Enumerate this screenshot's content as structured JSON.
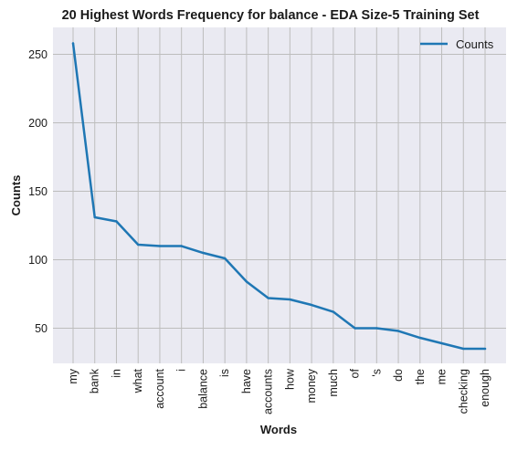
{
  "chart_data": {
    "type": "line",
    "title": "20 Highest Words Frequency for balance - EDA Size-5 Training Set",
    "xlabel": "Words",
    "ylabel": "Counts",
    "categories": [
      "my",
      "bank",
      "in",
      "what",
      "account",
      "i",
      "balance",
      "is",
      "have",
      "accounts",
      "how",
      "money",
      "much",
      "of",
      "'s",
      "do",
      "the",
      "me",
      "checking",
      "enough"
    ],
    "series": [
      {
        "name": "Counts",
        "values": [
          258,
          131,
          128,
          111,
          110,
          110,
          105,
          101,
          84,
          72,
          71,
          67,
          62,
          50,
          50,
          48,
          43,
          39,
          35,
          35
        ],
        "color": "#1f77b4"
      }
    ],
    "y_ticks": [
      50,
      100,
      150,
      200,
      250
    ],
    "ylim": [
      24.35,
      269.65
    ],
    "grid": true,
    "legend_position": "top-right",
    "colors": {
      "plot_background": "#eaeaf2",
      "grid": "#bdbdbd",
      "line": "#1f77b4"
    }
  }
}
